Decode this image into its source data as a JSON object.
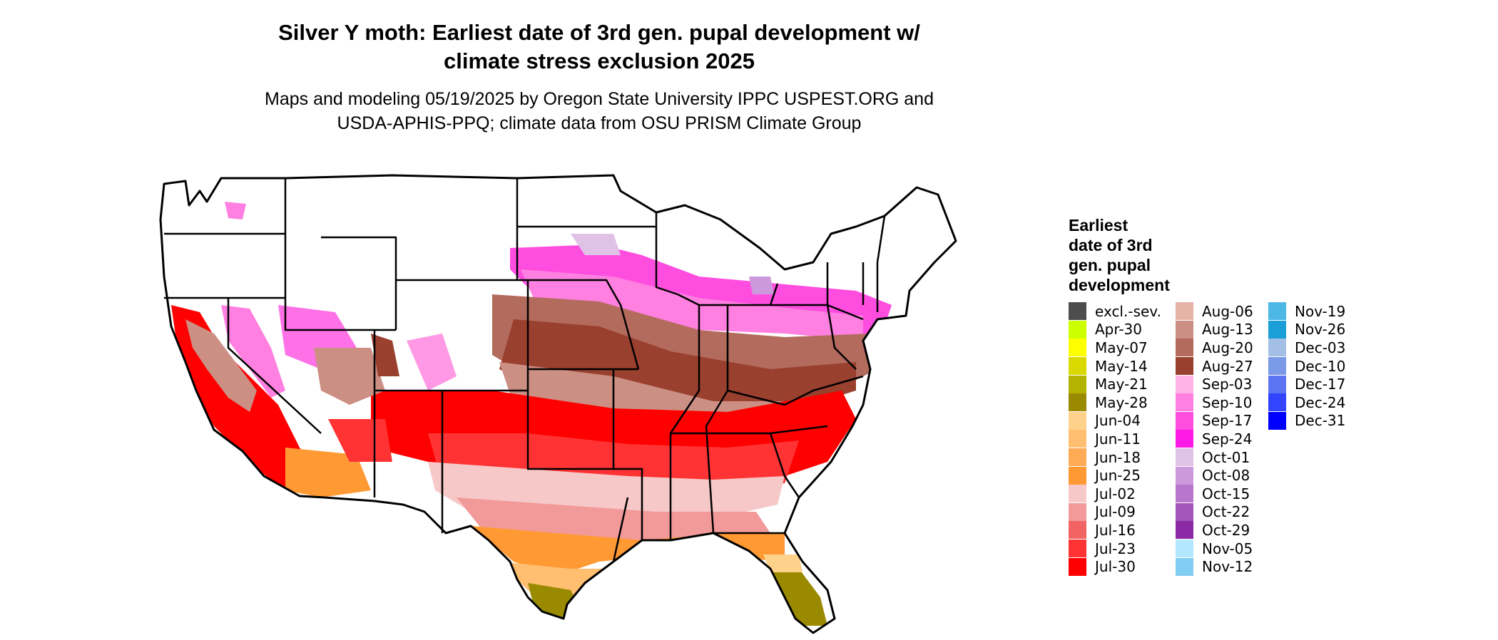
{
  "title_line1": "Silver Y moth: Earliest date of 3rd gen. pupal development w/",
  "title_line2": "climate stress exclusion 2025",
  "subtitle_line1": "Maps and modeling 05/19/2025 by Oregon State University IPPC USPEST.ORG and",
  "subtitle_line2": "USDA-APHIS-PPQ; climate data from OSU PRISM Climate Group",
  "legend": {
    "title_lines": [
      "Earliest",
      "date of 3rd",
      "gen. pupal",
      "development"
    ],
    "columns": [
      [
        {
          "label": "excl.-sev.",
          "color": "#4d4d4d"
        },
        {
          "label": "Apr-30",
          "color": "#ccff00"
        },
        {
          "label": "May-07",
          "color": "#ffff00"
        },
        {
          "label": "May-14",
          "color": "#d9d900"
        },
        {
          "label": "May-21",
          "color": "#b3b300"
        },
        {
          "label": "May-28",
          "color": "#9a8a00"
        },
        {
          "label": "Jun-04",
          "color": "#ffd28c"
        },
        {
          "label": "Jun-11",
          "color": "#ffbe70"
        },
        {
          "label": "Jun-18",
          "color": "#ffaa55"
        },
        {
          "label": "Jun-25",
          "color": "#ff9933"
        },
        {
          "label": "Jul-02",
          "color": "#f7c8c8"
        },
        {
          "label": "Jul-09",
          "color": "#f29a9a"
        },
        {
          "label": "Jul-16",
          "color": "#f26464"
        },
        {
          "label": "Jul-23",
          "color": "#ff3333"
        },
        {
          "label": "Jul-30",
          "color": "#ff0000"
        }
      ],
      [
        {
          "label": "Aug-06",
          "color": "#e6b3a8"
        },
        {
          "label": "Aug-13",
          "color": "#cc8f84"
        },
        {
          "label": "Aug-20",
          "color": "#b36b5e"
        },
        {
          "label": "Aug-27",
          "color": "#99402e"
        },
        {
          "label": "Sep-03",
          "color": "#ffb3e6"
        },
        {
          "label": "Sep-10",
          "color": "#ff80e0"
        },
        {
          "label": "Sep-17",
          "color": "#ff4de0"
        },
        {
          "label": "Sep-24",
          "color": "#ff1ae6"
        },
        {
          "label": "Oct-01",
          "color": "#e0c2e6"
        },
        {
          "label": "Oct-08",
          "color": "#cc99dd"
        },
        {
          "label": "Oct-15",
          "color": "#b877cc"
        },
        {
          "label": "Oct-22",
          "color": "#a355bb"
        },
        {
          "label": "Oct-29",
          "color": "#8c2aa6"
        },
        {
          "label": "Nov-05",
          "color": "#b3e6ff"
        },
        {
          "label": "Nov-12",
          "color": "#80ccf2"
        }
      ],
      [
        {
          "label": "Nov-19",
          "color": "#4db8e6"
        },
        {
          "label": "Nov-26",
          "color": "#1a9fd9"
        },
        {
          "label": "Dec-03",
          "color": "#a3bfe6"
        },
        {
          "label": "Dec-10",
          "color": "#7a99e6"
        },
        {
          "label": "Dec-17",
          "color": "#5c73f2"
        },
        {
          "label": "Dec-24",
          "color": "#3344ff"
        },
        {
          "label": "Dec-31",
          "color": "#0000ff"
        }
      ]
    ]
  }
}
